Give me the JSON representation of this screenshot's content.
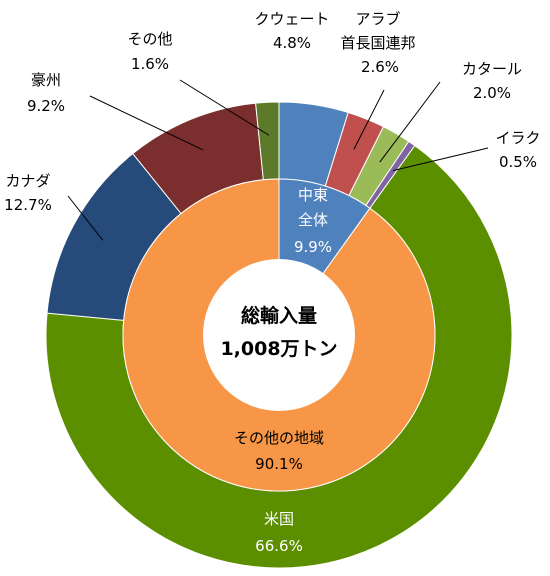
{
  "chart_data": {
    "type": "pie",
    "center_label": [
      "総輸入量",
      "1,008万トン"
    ],
    "outer": {
      "slices": [
        {
          "label": "中東全体",
          "parts": [
            "クウェート"
          ],
          "value": 4.8,
          "display": "4.8%",
          "color": "#4f81bd"
        },
        {
          "label": "アラブ首長国連邦",
          "parts": [
            "アラブ",
            "首長国連邦"
          ],
          "value": 2.6,
          "display": "2.6%",
          "color": "#c0504d"
        },
        {
          "label": "カタール",
          "parts": [
            "カタール"
          ],
          "value": 2.0,
          "display": "2.0%",
          "color": "#9bbb59"
        },
        {
          "label": "イラク",
          "parts": [
            "イラク"
          ],
          "value": 0.5,
          "display": "0.5%",
          "color": "#8064a2"
        },
        {
          "label": "米国",
          "parts": [
            "米国"
          ],
          "value": 66.6,
          "display": "66.6%",
          "color": "#5c8f00"
        },
        {
          "label": "カナダ",
          "parts": [
            "カナダ"
          ],
          "value": 12.7,
          "display": "12.7%",
          "color": "#264a7a"
        },
        {
          "label": "豪州",
          "parts": [
            "豪州"
          ],
          "value": 9.2,
          "display": "9.2%",
          "color": "#7b2e2e"
        },
        {
          "label": "その他",
          "parts": [
            "その他"
          ],
          "value": 1.6,
          "display": "1.6%",
          "color": "#5d7a2a"
        }
      ]
    },
    "inner": {
      "slices": [
        {
          "label": "中東全体",
          "parts": [
            "中東",
            "全体"
          ],
          "value": 9.9,
          "display": "9.9%",
          "color": "#4f81bd"
        },
        {
          "label": "その他の地域",
          "parts": [
            "その他の地域"
          ],
          "value": 90.1,
          "display": "90.1%",
          "color": "#f79646"
        }
      ]
    }
  }
}
